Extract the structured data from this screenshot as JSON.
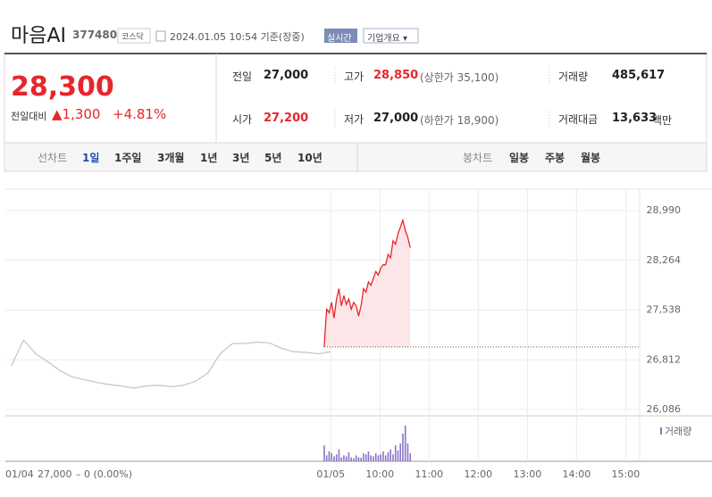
{
  "header": {
    "name": "마음AI",
    "code": "377480",
    "market": "코스닥",
    "datetime": "2024.01.05 10:54 기준(장중)",
    "realtime": "실시간",
    "company": "기업개요 ▾"
  },
  "quote": {
    "price": "28,300",
    "change_label": "전일대비",
    "change": "▲1,300",
    "rate": "+4.81%"
  },
  "info": {
    "rows": [
      [
        {
          "label": "전일",
          "value": "27,000"
        },
        {
          "label": "고가",
          "value": "28,850",
          "note": "(상한가 35,100)"
        },
        {
          "label": "거래량",
          "value": "485,617"
        }
      ],
      [
        {
          "label": "시가",
          "value": "27,200"
        },
        {
          "label": "저가",
          "value": "27,000",
          "note": "(하한가 18,900)"
        },
        {
          "label": "거래대금",
          "value": "13,633",
          "note": "백만"
        }
      ]
    ]
  },
  "tabs": {
    "line": [
      "선차트",
      "1일",
      "1주일",
      "3개월",
      "1년",
      "3년",
      "5년",
      "10년"
    ],
    "candle": [
      "봉차트",
      "일봉",
      "주봉",
      "월봉"
    ]
  },
  "chart_data": {
    "type": "line",
    "ylim": [
      26086,
      28990
    ],
    "yticks": [
      {
        "value": 26086,
        "label": "26,086"
      },
      {
        "value": 26812,
        "label": "26,812"
      },
      {
        "value": 27538,
        "label": "27,538"
      },
      {
        "value": 28264,
        "label": "28,264"
      },
      {
        "value": 28990,
        "label": "28,990"
      }
    ],
    "xlim": [
      -395,
      377
    ],
    "xticks": [
      {
        "value": 0,
        "label": "01/05"
      },
      {
        "value": 60,
        "label": "10:00"
      },
      {
        "value": 120,
        "label": "11:00"
      },
      {
        "value": 180,
        "label": "12:00"
      },
      {
        "value": 240,
        "label": "13:00"
      },
      {
        "value": 300,
        "label": "14:00"
      },
      {
        "value": 360,
        "label": "15:00"
      }
    ],
    "previous": {
      "date": "01/04",
      "close": {
        "value": 27000,
        "label": "27,000"
      },
      "change": "– 0 (0.00%)"
    },
    "series": [
      {
        "color": "#c8c8c8",
        "x": [
          -390,
          -375,
          -360,
          -345,
          -330,
          -315,
          -300,
          -285,
          -270,
          -255,
          -240,
          -225,
          -210,
          -195,
          -180,
          -165,
          -150,
          -135,
          -120,
          -105,
          -90,
          -75,
          -60,
          -45,
          -30,
          -15,
          0
        ],
        "values": [
          26720,
          27100,
          26900,
          26780,
          26650,
          26560,
          26520,
          26480,
          26450,
          26430,
          26400,
          26430,
          26440,
          26420,
          26440,
          26500,
          26620,
          26900,
          27050,
          27050,
          27070,
          27060,
          26980,
          26930,
          26920,
          26900,
          26930
        ]
      },
      {
        "color": "#e8252b",
        "x": [
          -8,
          -7,
          -5,
          -2,
          1,
          4,
          7,
          10,
          13,
          16,
          19,
          22,
          25,
          28,
          31,
          34,
          37,
          40,
          43,
          46,
          49,
          52,
          55,
          58,
          61,
          64,
          67,
          70,
          73,
          76,
          79,
          82,
          85,
          88,
          91,
          94,
          97
        ],
        "values": [
          27000,
          27200,
          27550,
          27500,
          27650,
          27420,
          27700,
          27850,
          27600,
          27750,
          27620,
          27700,
          27550,
          27650,
          27600,
          27450,
          27600,
          27850,
          27800,
          27950,
          27900,
          28000,
          28100,
          28050,
          28150,
          28200,
          28200,
          28350,
          28300,
          28550,
          28500,
          28650,
          28750,
          28850,
          28700,
          28600,
          28450
        ]
      }
    ],
    "volume": {
      "label": "거래량",
      "x": [
        -8,
        -5,
        -2,
        1,
        4,
        7,
        10,
        13,
        16,
        19,
        22,
        25,
        28,
        31,
        34,
        37,
        40,
        43,
        46,
        49,
        52,
        55,
        58,
        61,
        64,
        67,
        70,
        73,
        76,
        79,
        82,
        85,
        88,
        91,
        94,
        97
      ],
      "values": [
        8000,
        3000,
        5000,
        4000,
        2500,
        3500,
        6000,
        2000,
        3000,
        2500,
        4500,
        2000,
        1500,
        3000,
        2000,
        1800,
        4000,
        3500,
        5000,
        3000,
        2500,
        4000,
        3000,
        3500,
        5000,
        3000,
        4500,
        6000,
        3500,
        8000,
        5500,
        9000,
        14000,
        18000,
        9000,
        4000
      ]
    }
  }
}
